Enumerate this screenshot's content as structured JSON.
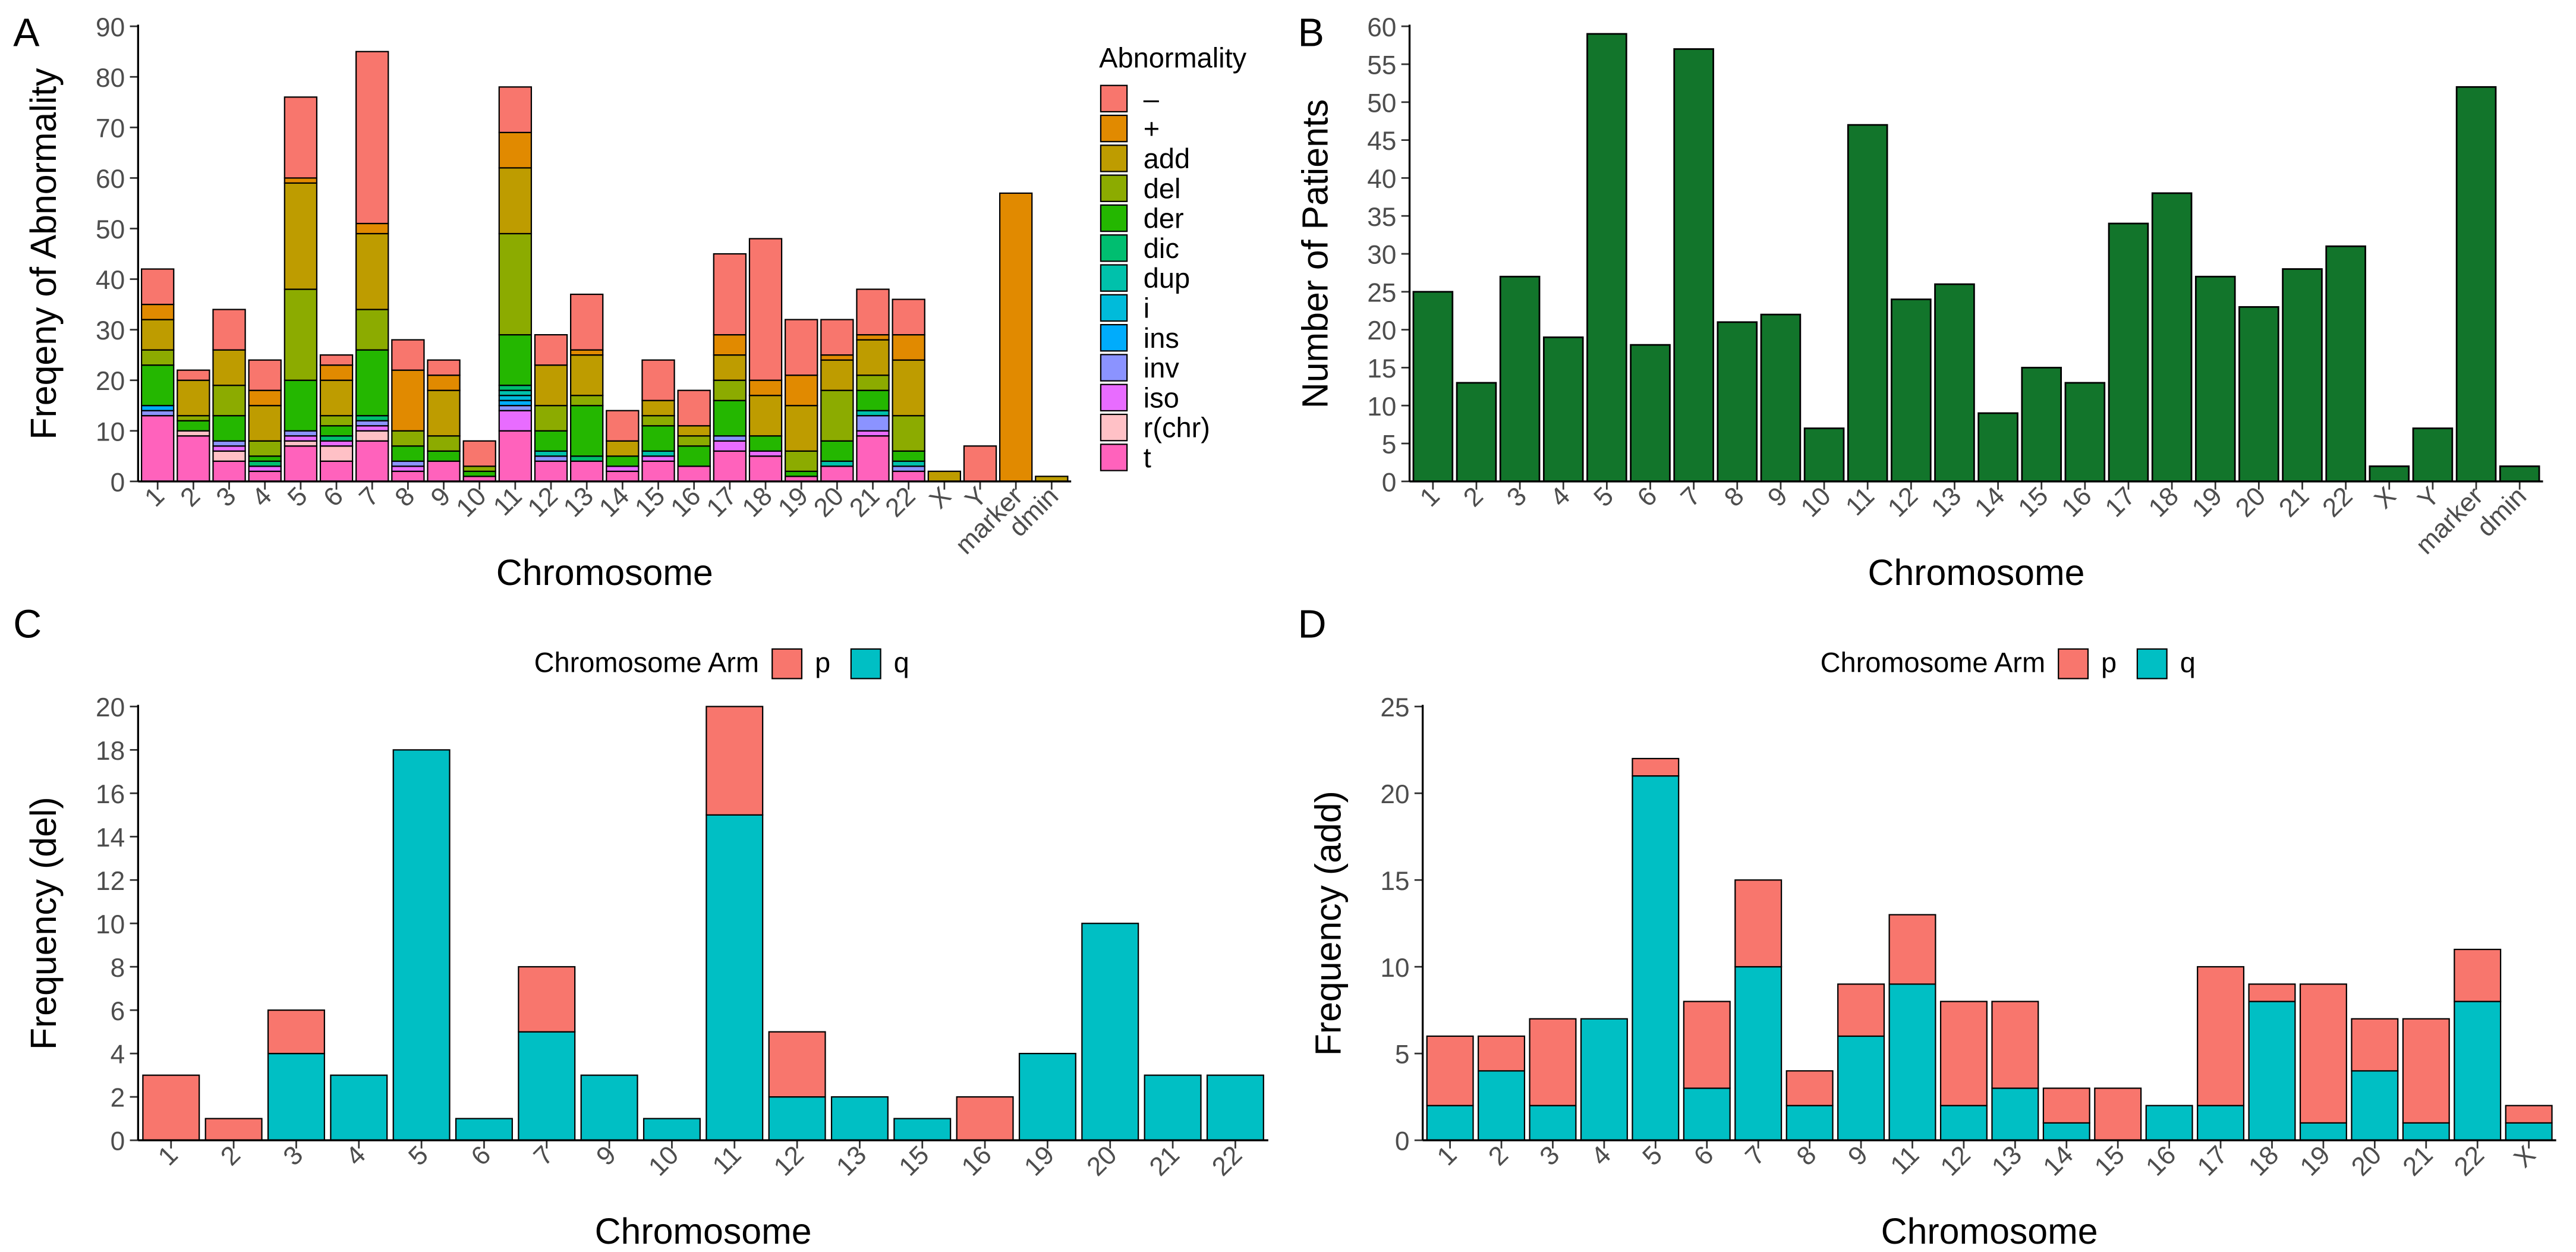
{
  "chart_data": [
    {
      "type": "stacked_bar",
      "panel_label": "A",
      "xlabel": "Chromosome",
      "ylabel": "Freqeny of Abnormality",
      "legend_title": "Abnormality",
      "legend": "right",
      "categories": [
        "1",
        "2",
        "3",
        "4",
        "5",
        "6",
        "7",
        "8",
        "9",
        "10",
        "11",
        "12",
        "13",
        "14",
        "15",
        "16",
        "17",
        "18",
        "19",
        "20",
        "21",
        "22",
        "X",
        "Y",
        "marker",
        "dmin"
      ],
      "ylim": [
        0,
        90
      ],
      "yticks": [
        0,
        10,
        20,
        30,
        40,
        50,
        60,
        70,
        80,
        90
      ],
      "series": [
        {
          "name": "–",
          "color": "#F8766D",
          "values": [
            7,
            2,
            8,
            6,
            16,
            2,
            34,
            6,
            3,
            5,
            9,
            6,
            11,
            6,
            8,
            7,
            16,
            28,
            11,
            7,
            9,
            7,
            0,
            7,
            0,
            0
          ]
        },
        {
          "name": "+",
          "color": "#E18A00",
          "values": [
            3,
            0,
            0,
            3,
            1,
            3,
            2,
            12,
            3,
            0,
            7,
            0,
            1,
            0,
            0,
            0,
            4,
            3,
            6,
            1,
            1,
            5,
            0,
            0,
            57,
            0
          ]
        },
        {
          "name": "add",
          "color": "#BE9C00",
          "values": [
            6,
            7,
            7,
            7,
            21,
            7,
            15,
            0,
            9,
            0,
            13,
            8,
            8,
            3,
            3,
            2,
            5,
            8,
            9,
            6,
            7,
            11,
            2,
            0,
            0,
            1
          ]
        },
        {
          "name": "del",
          "color": "#8CAB00",
          "values": [
            3,
            1,
            6,
            3,
            18,
            2,
            8,
            3,
            3,
            1,
            20,
            5,
            2,
            0,
            2,
            2,
            4,
            0,
            4,
            10,
            3,
            7,
            0,
            0,
            0,
            0
          ]
        },
        {
          "name": "der",
          "color": "#24B700",
          "values": [
            8,
            2,
            5,
            1,
            10,
            2,
            13,
            3,
            2,
            1,
            10,
            4,
            10,
            2,
            5,
            4,
            7,
            3,
            1,
            4,
            4,
            2,
            0,
            0,
            0,
            0
          ]
        },
        {
          "name": "dic",
          "color": "#00BE70",
          "values": [
            0,
            0,
            0,
            1,
            0,
            1,
            1,
            0,
            0,
            0,
            1,
            0,
            1,
            0,
            0,
            0,
            0,
            0,
            0,
            0,
            0,
            0,
            0,
            0,
            0,
            0
          ]
        },
        {
          "name": "dup",
          "color": "#00C1AB",
          "values": [
            0,
            0,
            0,
            0,
            0,
            0,
            0,
            0,
            0,
            0,
            1,
            1,
            0,
            0,
            1,
            0,
            0,
            0,
            0,
            1,
            1,
            1,
            0,
            0,
            0,
            0
          ]
        },
        {
          "name": "i",
          "color": "#00BBDA",
          "values": [
            0,
            0,
            0,
            0,
            0,
            0,
            0,
            0,
            0,
            0,
            1,
            0,
            0,
            0,
            0,
            0,
            0,
            0,
            0,
            0,
            0,
            0,
            0,
            0,
            0,
            0
          ]
        },
        {
          "name": "ins",
          "color": "#00ACFC",
          "values": [
            1,
            0,
            0,
            0,
            0,
            0,
            0,
            0,
            0,
            0,
            1,
            0,
            0,
            0,
            0,
            0,
            0,
            0,
            0,
            0,
            0,
            0,
            0,
            0,
            0,
            0
          ]
        },
        {
          "name": "inv",
          "color": "#8B93FF",
          "values": [
            1,
            0,
            1,
            0,
            1,
            0,
            1,
            1,
            0,
            0,
            1,
            1,
            0,
            0,
            0,
            0,
            1,
            0,
            0,
            0,
            3,
            1,
            0,
            0,
            0,
            0
          ]
        },
        {
          "name": "iso",
          "color": "#E86CFF",
          "values": [
            0,
            0,
            1,
            1,
            1,
            1,
            1,
            1,
            0,
            0,
            4,
            0,
            0,
            1,
            1,
            0,
            2,
            1,
            0,
            0,
            1,
            0,
            0,
            0,
            0,
            0
          ]
        },
        {
          "name": "r(chr)",
          "color": "#FFC1C6",
          "values": [
            0,
            1,
            2,
            0,
            1,
            3,
            2,
            0,
            0,
            0,
            0,
            0,
            0,
            0,
            0,
            0,
            0,
            0,
            0,
            0,
            0,
            0,
            0,
            0,
            0,
            0
          ]
        },
        {
          "name": "t",
          "color": "#FF62BC",
          "values": [
            13,
            9,
            4,
            2,
            7,
            4,
            8,
            2,
            4,
            1,
            10,
            4,
            4,
            2,
            4,
            3,
            6,
            5,
            1,
            3,
            9,
            2,
            0,
            0,
            0,
            0
          ]
        }
      ]
    },
    {
      "type": "bar",
      "panel_label": "B",
      "xlabel": "Chromosome",
      "ylabel": "Number of Patients",
      "color": "#12752B",
      "categories": [
        "1",
        "2",
        "3",
        "4",
        "5",
        "6",
        "7",
        "8",
        "9",
        "10",
        "11",
        "12",
        "13",
        "14",
        "15",
        "16",
        "17",
        "18",
        "19",
        "20",
        "21",
        "22",
        "X",
        "Y",
        "marker",
        "dmin"
      ],
      "values": [
        25,
        13,
        27,
        19,
        59,
        18,
        57,
        21,
        22,
        7,
        47,
        24,
        26,
        9,
        15,
        13,
        34,
        38,
        27,
        23,
        28,
        31,
        2,
        7,
        52,
        2
      ],
      "ylim": [
        0,
        60
      ],
      "yticks": [
        0,
        5,
        10,
        15,
        20,
        25,
        30,
        35,
        40,
        45,
        50,
        55,
        60
      ]
    },
    {
      "type": "stacked_bar",
      "panel_label": "C",
      "xlabel": "Chromosome",
      "ylabel": "Frequency (del)",
      "legend_title": "Chromosome Arm",
      "legend": "top",
      "categories": [
        "1",
        "2",
        "3",
        "4",
        "5",
        "6",
        "7",
        "9",
        "10",
        "11",
        "12",
        "13",
        "15",
        "16",
        "19",
        "20",
        "21",
        "22"
      ],
      "ylim": [
        0,
        20
      ],
      "yticks": [
        0,
        2,
        4,
        6,
        8,
        10,
        12,
        14,
        16,
        18,
        20
      ],
      "series": [
        {
          "name": "p",
          "color": "#F8766D",
          "values": [
            3,
            1,
            2,
            0,
            0,
            0,
            3,
            0,
            0,
            5,
            3,
            0,
            0,
            2,
            0,
            0,
            0,
            0
          ]
        },
        {
          "name": "q",
          "color": "#00BFC4",
          "values": [
            0,
            0,
            4,
            3,
            18,
            1,
            5,
            3,
            1,
            15,
            2,
            2,
            1,
            0,
            4,
            10,
            3,
            3
          ]
        }
      ]
    },
    {
      "type": "stacked_bar",
      "panel_label": "D",
      "xlabel": "Chromosome",
      "ylabel": "Frequency (add)",
      "legend_title": "Chromosome Arm",
      "legend": "top",
      "categories": [
        "1",
        "2",
        "3",
        "4",
        "5",
        "6",
        "7",
        "8",
        "9",
        "11",
        "12",
        "13",
        "14",
        "15",
        "16",
        "17",
        "18",
        "19",
        "20",
        "21",
        "22",
        "X"
      ],
      "ylim": [
        0,
        25
      ],
      "yticks": [
        0,
        5,
        10,
        15,
        20,
        25
      ],
      "series": [
        {
          "name": "p",
          "color": "#F8766D",
          "values": [
            4,
            2,
            5,
            0,
            1,
            5,
            5,
            2,
            3,
            4,
            6,
            5,
            2,
            3,
            0,
            8,
            1,
            8,
            3,
            6,
            3,
            1
          ]
        },
        {
          "name": "q",
          "color": "#00BFC4",
          "values": [
            2,
            4,
            2,
            7,
            21,
            3,
            10,
            2,
            6,
            9,
            2,
            3,
            1,
            0,
            2,
            2,
            8,
            1,
            4,
            1,
            8,
            1
          ]
        }
      ]
    }
  ]
}
